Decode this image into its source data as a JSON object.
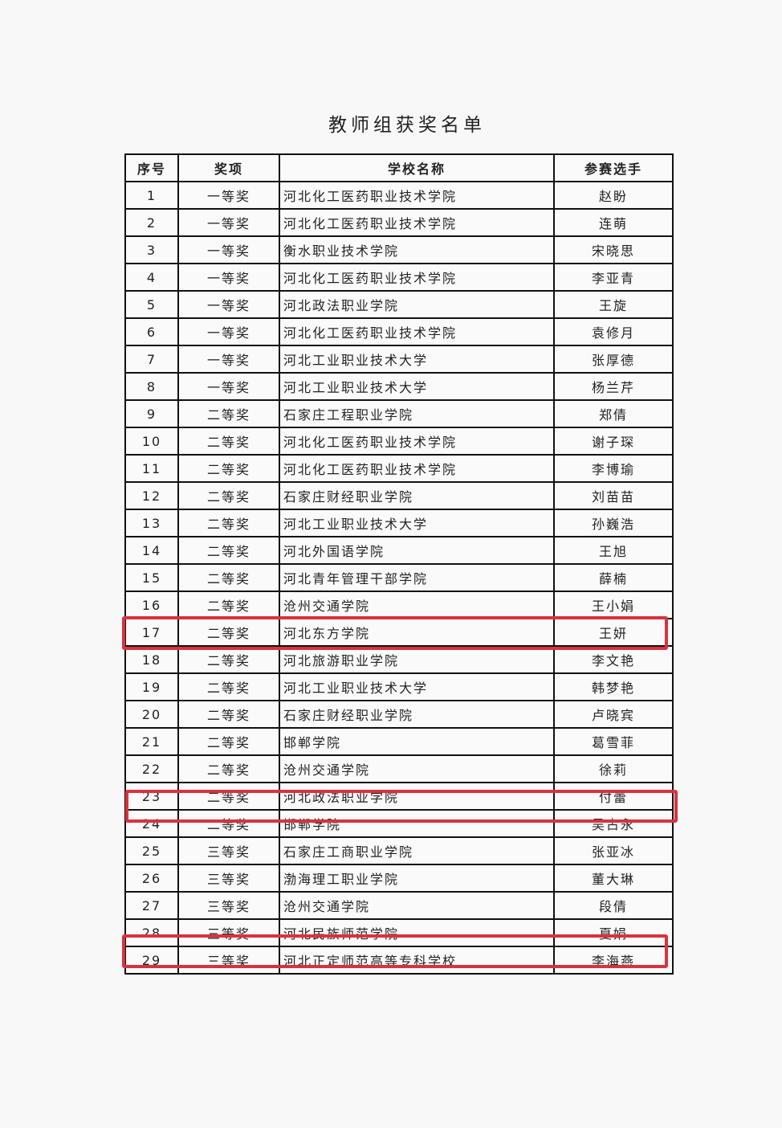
{
  "title": "教师组获奖名单",
  "columns": [
    "序号",
    "奖项",
    "学校名称",
    "参赛选手"
  ],
  "rows": [
    [
      "1",
      "一等奖",
      "河北化工医药职业技术学院",
      "赵盼"
    ],
    [
      "2",
      "一等奖",
      "河北化工医药职业技术学院",
      "连萌"
    ],
    [
      "3",
      "一等奖",
      "衡水职业技术学院",
      "宋晓思"
    ],
    [
      "4",
      "一等奖",
      "河北化工医药职业技术学院",
      "李亚青"
    ],
    [
      "5",
      "一等奖",
      "河北政法职业学院",
      "王旋"
    ],
    [
      "6",
      "一等奖",
      "河北化工医药职业技术学院",
      "袁修月"
    ],
    [
      "7",
      "一等奖",
      "河北工业职业技术大学",
      "张厚德"
    ],
    [
      "8",
      "一等奖",
      "河北工业职业技术大学",
      "杨兰芹"
    ],
    [
      "9",
      "二等奖",
      "石家庄工程职业学院",
      "郑倩"
    ],
    [
      "10",
      "二等奖",
      "河北化工医药职业技术学院",
      "谢子琛"
    ],
    [
      "11",
      "二等奖",
      "河北化工医药职业技术学院",
      "李博瑜"
    ],
    [
      "12",
      "二等奖",
      "石家庄财经职业学院",
      "刘苗苗"
    ],
    [
      "13",
      "二等奖",
      "河北工业职业技术大学",
      "孙巍浩"
    ],
    [
      "14",
      "二等奖",
      "河北外国语学院",
      "王旭"
    ],
    [
      "15",
      "二等奖",
      "河北青年管理干部学院",
      "薛楠"
    ],
    [
      "16",
      "二等奖",
      "沧州交通学院",
      "王小娟"
    ],
    [
      "17",
      "二等奖",
      "河北东方学院",
      "王妍"
    ],
    [
      "18",
      "二等奖",
      "河北旅游职业学院",
      "李文艳"
    ],
    [
      "19",
      "二等奖",
      "河北工业职业技术大学",
      "韩梦艳"
    ],
    [
      "20",
      "二等奖",
      "石家庄财经职业学院",
      "卢晓宾"
    ],
    [
      "21",
      "二等奖",
      "邯郸学院",
      "葛雪菲"
    ],
    [
      "22",
      "二等奖",
      "沧州交通学院",
      "徐莉"
    ],
    [
      "23",
      "二等奖",
      "河北政法职业学院",
      "付蕾"
    ],
    [
      "24",
      "二等奖",
      "邯郸学院",
      "吴占永"
    ],
    [
      "25",
      "三等奖",
      "石家庄工商职业学院",
      "张亚冰"
    ],
    [
      "26",
      "三等奖",
      "渤海理工职业学院",
      "董大琳"
    ],
    [
      "27",
      "三等奖",
      "沧州交通学院",
      "段倩"
    ],
    [
      "28",
      "三等奖",
      "河北民族师范学院",
      "夏娟"
    ],
    [
      "29",
      "三等奖",
      "河北正定师范高等专科学校",
      "李海燕"
    ]
  ],
  "highlighted_rows": [
    "16",
    "22",
    "27"
  ],
  "highlight_color": "#d9323f"
}
